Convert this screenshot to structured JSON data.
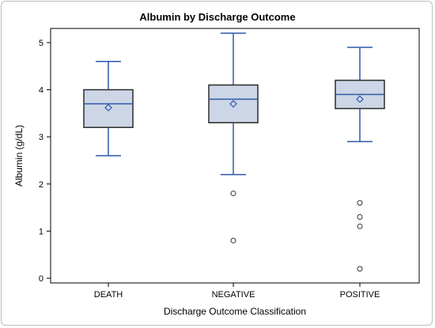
{
  "chart_data": {
    "type": "box",
    "title": "Albumin by Discharge Outcome",
    "xlabel": "Discharge Outcome Classification",
    "ylabel": "Albumin (g/dL)",
    "ylim": [
      -0.1,
      5.3
    ],
    "yticks": [
      0,
      1,
      2,
      3,
      4,
      5
    ],
    "categories": [
      "DEATH",
      "NEGATIVE",
      "POSITIVE"
    ],
    "boxes": [
      {
        "category": "DEATH",
        "whisker_low": 2.6,
        "q1": 3.2,
        "median": 3.7,
        "q3": 4.0,
        "whisker_high": 4.6,
        "mean": 3.62,
        "outliers": []
      },
      {
        "category": "NEGATIVE",
        "whisker_low": 2.2,
        "q1": 3.3,
        "median": 3.8,
        "q3": 4.1,
        "whisker_high": 5.2,
        "mean": 3.7,
        "outliers": [
          1.8,
          0.8
        ]
      },
      {
        "category": "POSITIVE",
        "whisker_low": 2.9,
        "q1": 3.6,
        "median": 3.9,
        "q3": 4.2,
        "whisker_high": 4.9,
        "mean": 3.8,
        "outliers": [
          1.6,
          1.3,
          1.1,
          0.2
        ]
      }
    ],
    "grid": false,
    "legend": "none",
    "colors": {
      "box_fill": "#cdd6e6",
      "box_stroke": "#2b2b2b",
      "line": "#2d58a8",
      "outlier_stroke": "#333333",
      "axis": "#000000"
    }
  }
}
